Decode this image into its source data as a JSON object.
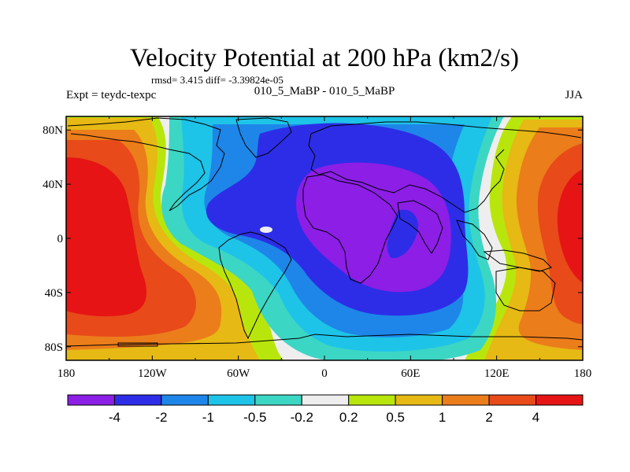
{
  "chart_data": {
    "type": "heatmap",
    "title": "Velocity Potential at 200 hPa (km2/s)",
    "stats_text": "rmsd= 3.415 diff= -3.39824e-05",
    "experiment_text": "Expt = teydc-texpc",
    "center_subtitle": "010_5_MaBP - 010_5_MaBP",
    "season": "JJA",
    "x_ticks": [
      "180",
      "120W",
      "60W",
      "0",
      "60E",
      "120E",
      "180"
    ],
    "x_tick_lon": [
      -180,
      -120,
      -60,
      0,
      60,
      120,
      180
    ],
    "y_ticks": [
      "80N",
      "40N",
      "0",
      "40S",
      "80S"
    ],
    "y_tick_lat": [
      80,
      40,
      0,
      -40,
      -80
    ],
    "xlim": [
      -180,
      180
    ],
    "ylim": [
      -90,
      90
    ],
    "colorbar_labels": [
      "-4",
      "-2",
      "-1",
      "-0.5",
      "-0.2",
      "0.2",
      "0.5",
      "1",
      "2",
      "4"
    ],
    "colorbar_colors": [
      "#8c1ee6",
      "#2d2de8",
      "#1e86e8",
      "#1ec3e8",
      "#3cd6c4",
      "#eeeeee",
      "#b8e60c",
      "#e6b914",
      "#eb7d1b",
      "#e84a1a",
      "#e61414"
    ],
    "field_description": "Two dipole centres: maximum (>4) over central Pacific near 180 longitude, minimum (<-4) over Africa / Indian Ocean centred near 40E, 10N",
    "positive_center": {
      "lon": 180,
      "lat": 5
    },
    "negative_center": {
      "lon": 40,
      "lat": 10
    }
  }
}
